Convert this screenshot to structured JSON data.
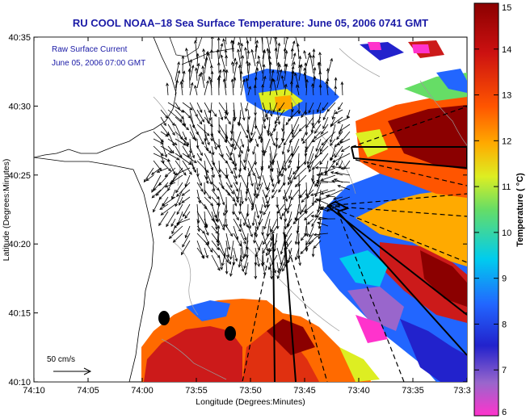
{
  "title": "RU COOL  NOAA–18  Sea Surface Temperature:  June 05, 2006 0741 GMT",
  "subtitle_line1": "Raw Surface Current",
  "subtitle_line2": "June 05, 2006 07:00 GMT",
  "x_axis_label": "Longitude (Degrees:Minutes)",
  "y_axis_label": "Latitude (Degrees:Minutes)",
  "x_ticks": [
    "74:10",
    "74:05",
    "74:00",
    "73:55",
    "73:50",
    "73:45",
    "73:40",
    "73:35",
    "73:3"
  ],
  "y_ticks": [
    "40:35",
    "40:30",
    "40:25",
    "40:20",
    "40:15",
    "40:10"
  ],
  "scale_label": "50 cm/s",
  "colorbar": {
    "label": "Temperature ( °C)",
    "min": 6,
    "max": 15,
    "ticks": [
      "15",
      "14",
      "13",
      "12",
      "11",
      "10",
      "9",
      "8",
      "7",
      "6"
    ],
    "colors": [
      "#ff33cc",
      "#9966cc",
      "#2222cc",
      "#2266ff",
      "#00ccee",
      "#66dd66",
      "#ddee22",
      "#ffaa00",
      "#ff5500",
      "#cc1111",
      "#8b0000"
    ]
  },
  "colors": {
    "title": "#1a1aa6",
    "land": "#ffffff",
    "vectors": "#000000"
  },
  "buoys": [
    "buoy-north",
    "buoy-south"
  ]
}
